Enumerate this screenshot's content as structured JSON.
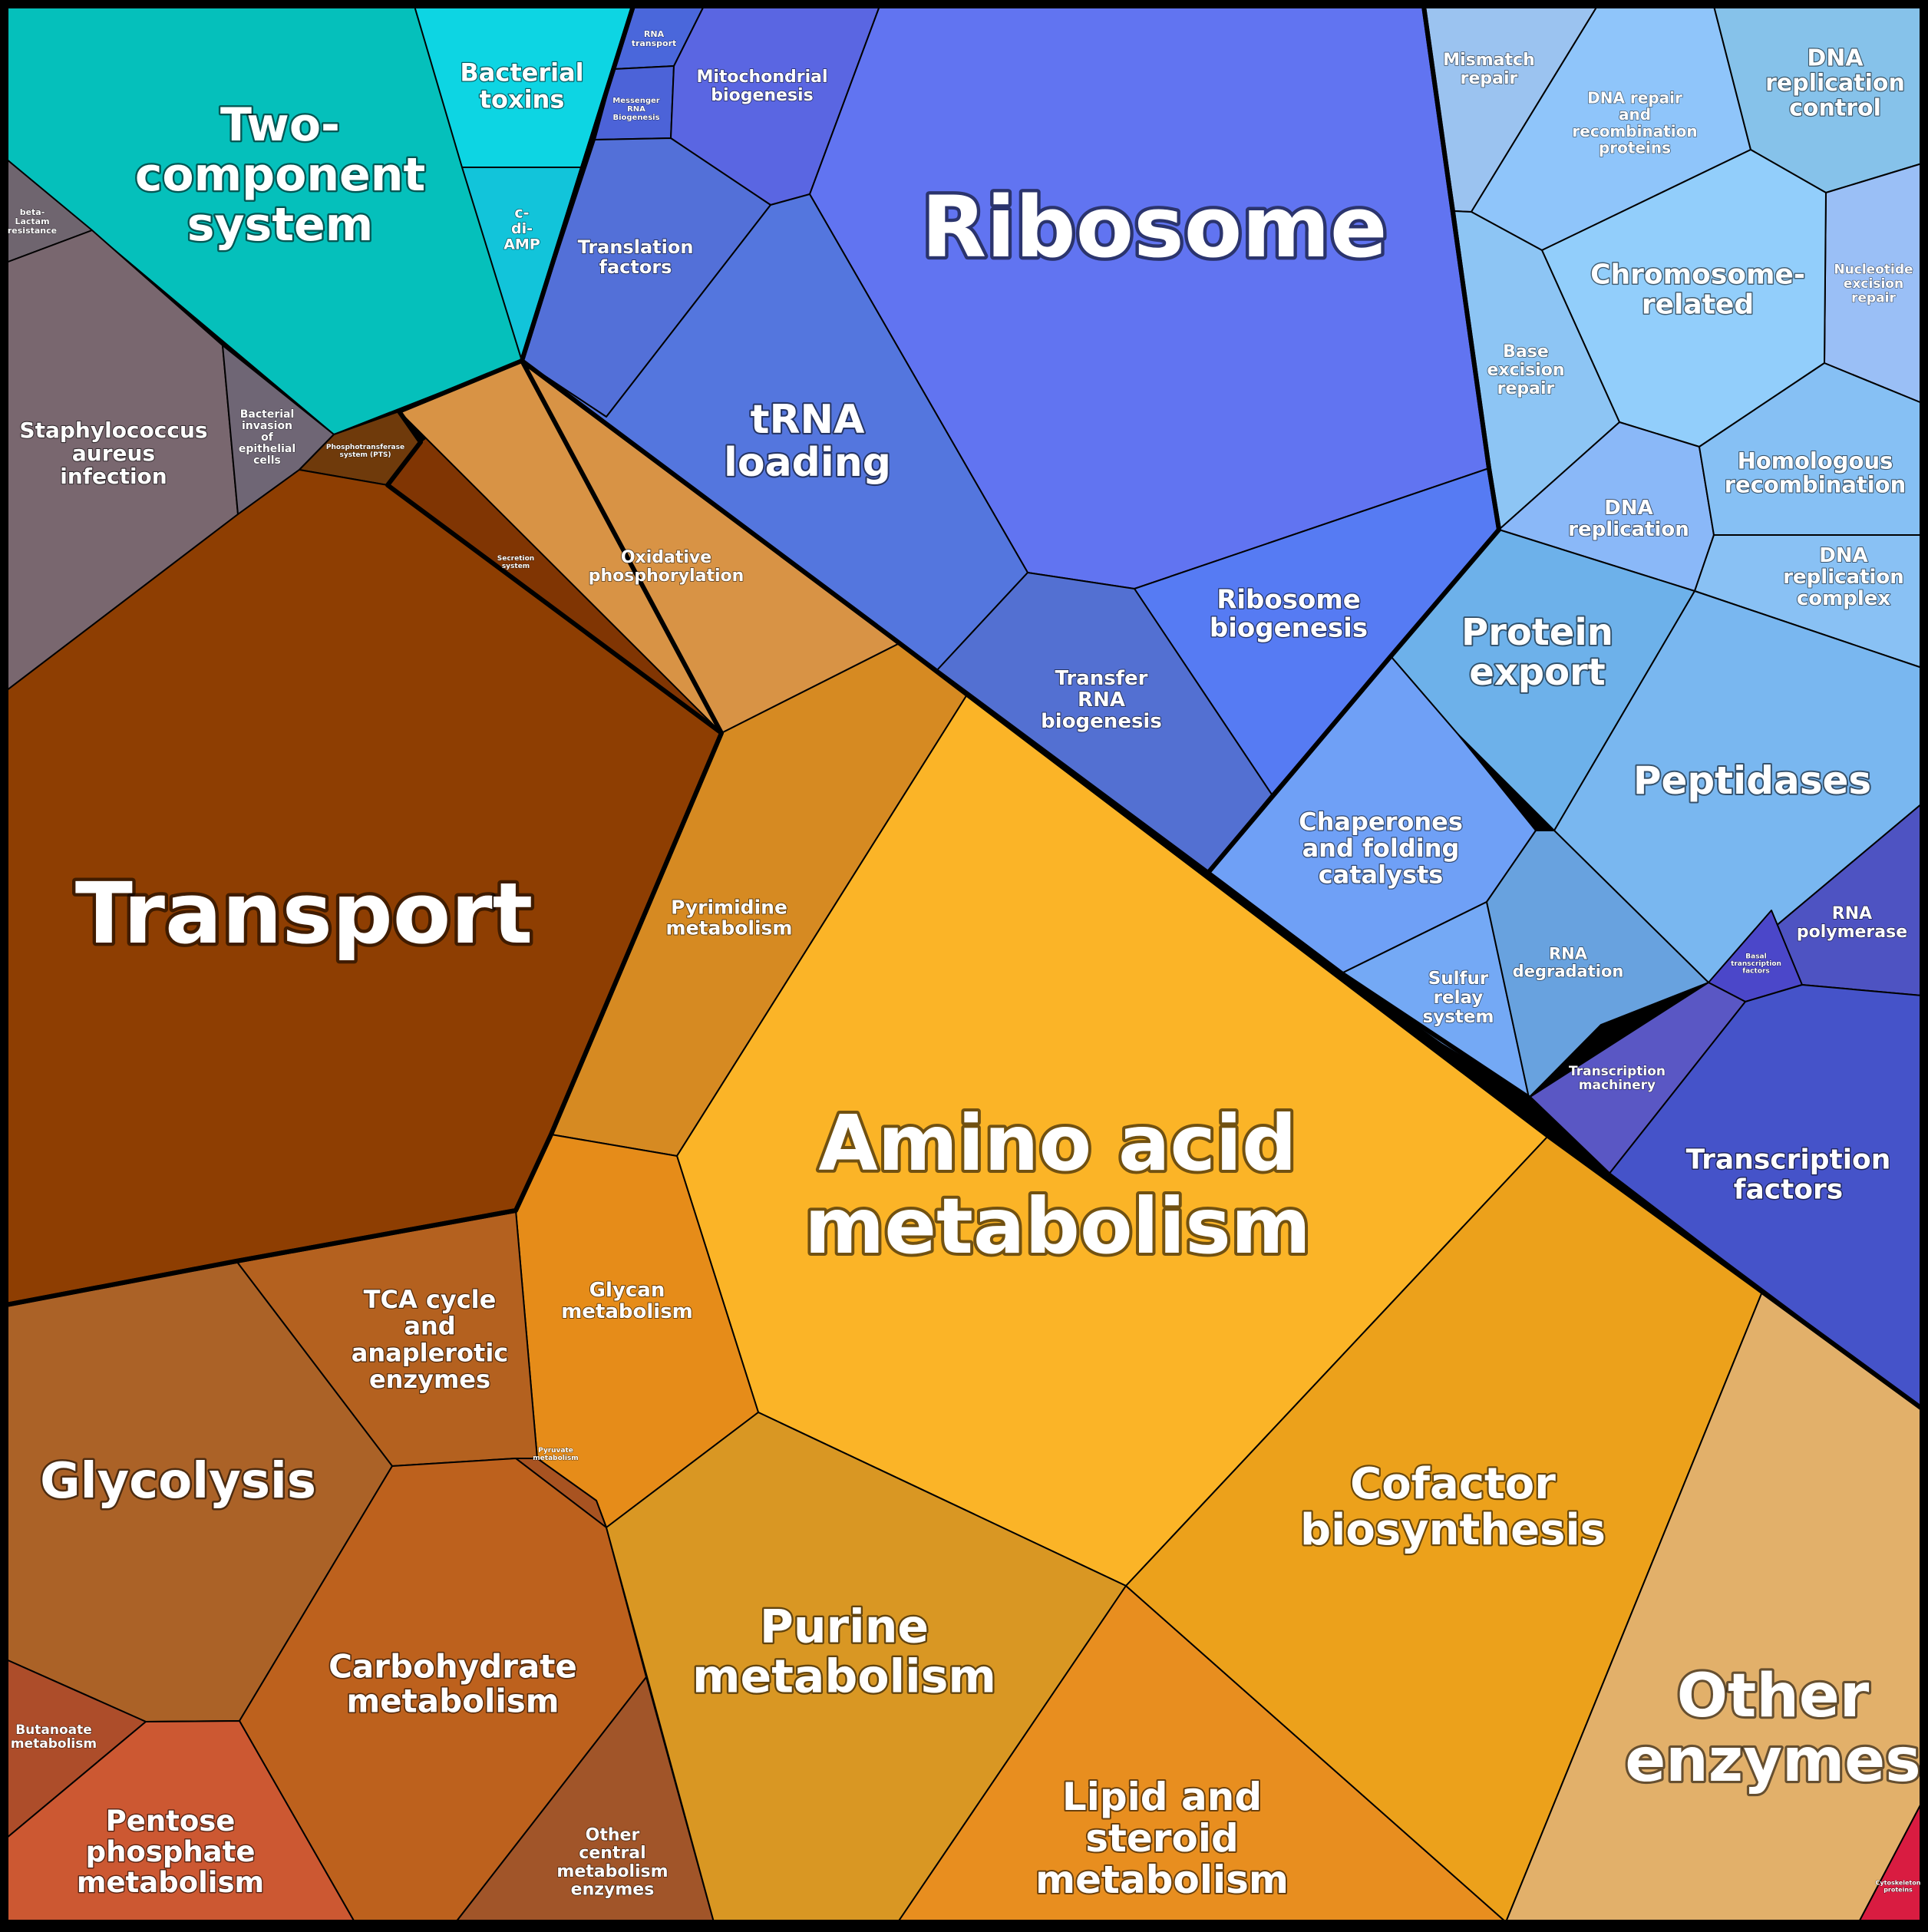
{
  "groups": [
    {
      "id": "environmental",
      "cells": [
        "two-component-system",
        "bacterial-toxins",
        "c-di-amp",
        "beta-lactam-resistance",
        "staphylococcus-aureus-infection",
        "bacterial-invasion",
        "pts",
        "secretion-system",
        "transport"
      ]
    },
    {
      "id": "genetic-information",
      "cells": [
        "rna-transport",
        "messenger-rna-biogenesis",
        "mitochondrial-biogenesis",
        "translation-factors",
        "ribosome",
        "trna-loading",
        "ribosome-biogenesis",
        "transfer-rna-biogenesis"
      ]
    },
    {
      "id": "dna-and-protein",
      "cells": [
        "mismatch-repair",
        "dna-repair-recombination",
        "dna-replication-control",
        "nucleotide-excision-repair",
        "chromosome-related",
        "base-excision-repair",
        "dna-replication",
        "homologous-recombination",
        "dna-replication-complex",
        "protein-export",
        "peptidases",
        "chaperones",
        "sulfur-relay",
        "rna-degradation",
        "rna-polymerase",
        "basal-transcription-factors",
        "transcription-machinery",
        "transcription-factors"
      ]
    },
    {
      "id": "metabolism",
      "cells": [
        "oxidative-phosphorylation",
        "pyrimidine-metabolism",
        "amino-acid-metabolism",
        "glycan-metabolism",
        "tca-cycle",
        "glycolysis",
        "pyruvate-metabolism",
        "carbohydrate-metabolism",
        "butanoate-metabolism",
        "pentose-phosphate",
        "other-central-metabolism",
        "purine-metabolism",
        "lipid-steroid",
        "cofactor-biosynthesis",
        "other-enzymes",
        "cytoskeleton-proteins"
      ]
    }
  ],
  "cells": [
    {
      "id": "two-component-system",
      "label": [
        "Two-",
        "component",
        "system"
      ],
      "color": "#05c0bb"
    },
    {
      "id": "bacterial-toxins",
      "label": [
        "Bacterial",
        "toxins"
      ],
      "color": "#0dd5e3"
    },
    {
      "id": "c-di-amp",
      "label": [
        "c-",
        "di-",
        "AMP"
      ],
      "color": "#12c4da"
    },
    {
      "id": "beta-lactam-resistance",
      "label": [
        "beta-",
        "Lactam",
        "resistance"
      ],
      "color": "#6f656f"
    },
    {
      "id": "staphylococcus-aureus-infection",
      "label": [
        "Staphylococcus",
        "aureus",
        "infection"
      ],
      "color": "#79676f"
    },
    {
      "id": "bacterial-invasion",
      "label": [
        "Bacterial",
        "invasion",
        "of",
        "epithelial",
        "cells"
      ],
      "color": "#6f6675"
    },
    {
      "id": "pts",
      "label": [
        "Phosphotransferase",
        "system (PTS)"
      ],
      "color": "#6f3a0b"
    },
    {
      "id": "secretion-system",
      "label": [
        "Secretion",
        "system"
      ],
      "color": "#803503"
    },
    {
      "id": "transport",
      "label": [
        "Transport"
      ],
      "color": "#8e3e02"
    },
    {
      "id": "rna-transport",
      "label": [
        "RNA",
        "transport"
      ],
      "color": "#4a67db"
    },
    {
      "id": "messenger-rna-biogenesis",
      "label": [
        "Messenger",
        "RNA",
        "Biogenesis"
      ],
      "color": "#4c63d8"
    },
    {
      "id": "mitochondrial-biogenesis",
      "label": [
        "Mitochondrial",
        "biogenesis"
      ],
      "color": "#5a66e2"
    },
    {
      "id": "translation-factors",
      "label": [
        "Translation",
        "factors"
      ],
      "color": "#5370d8"
    },
    {
      "id": "ribosome",
      "label": [
        "Ribosome"
      ],
      "color": "#6174f1"
    },
    {
      "id": "trna-loading",
      "label": [
        "tRNA",
        "loading"
      ],
      "color": "#5476de"
    },
    {
      "id": "ribosome-biogenesis",
      "label": [
        "Ribosome",
        "biogenesis"
      ],
      "color": "#567bf3"
    },
    {
      "id": "transfer-rna-biogenesis",
      "label": [
        "Transfer",
        "RNA",
        "biogenesis"
      ],
      "color": "#5370d2"
    },
    {
      "id": "mismatch-repair",
      "label": [
        "Mismatch",
        "repair"
      ],
      "color": "#9bc3f0"
    },
    {
      "id": "dna-repair-recombination",
      "label": [
        "DNA repair",
        "and",
        "recombination",
        "proteins"
      ],
      "color": "#8fc5fa"
    },
    {
      "id": "dna-replication-control",
      "label": [
        "DNA",
        "replication",
        "control"
      ],
      "color": "#86c2ea"
    },
    {
      "id": "nucleotide-excision-repair",
      "label": [
        "Nucleotide",
        "excision",
        "repair"
      ],
      "color": "#9abff6"
    },
    {
      "id": "chromosome-related",
      "label": [
        "Chromosome-",
        "related"
      ],
      "color": "#92cefb"
    },
    {
      "id": "base-excision-repair",
      "label": [
        "Base",
        "excision",
        "repair"
      ],
      "color": "#8dc5f4"
    },
    {
      "id": "dna-replication",
      "label": [
        "DNA",
        "replication"
      ],
      "color": "#8ab8f8"
    },
    {
      "id": "homologous-recombination",
      "label": [
        "Homologous",
        "recombination"
      ],
      "color": "#86c0f4"
    },
    {
      "id": "dna-replication-complex",
      "label": [
        "DNA",
        "replication",
        "complex"
      ],
      "color": "#89c1f4"
    },
    {
      "id": "protein-export",
      "label": [
        "Protein",
        "export"
      ],
      "color": "#6db1ea"
    },
    {
      "id": "peptidases",
      "label": [
        "Peptidases"
      ],
      "color": "#79b7f0"
    },
    {
      "id": "chaperones",
      "label": [
        "Chaperones",
        "and folding",
        "catalysts"
      ],
      "color": "#6fa0f6"
    },
    {
      "id": "sulfur-relay",
      "label": [
        "Sulfur",
        "relay",
        "system"
      ],
      "color": "#74a9f5"
    },
    {
      "id": "rna-degradation",
      "label": [
        "RNA",
        "degradation"
      ],
      "color": "#68a2df"
    },
    {
      "id": "rna-polymerase",
      "label": [
        "RNA",
        "polymerase"
      ],
      "color": "#4e53c2"
    },
    {
      "id": "basal-transcription-factors",
      "label": [
        "Basal",
        "transcription",
        "factors"
      ],
      "color": "#4b47c9"
    },
    {
      "id": "transcription-machinery",
      "label": [
        "Transcription",
        "machinery"
      ],
      "color": "#5a57c4"
    },
    {
      "id": "transcription-factors",
      "label": [
        "Transcription",
        "factors"
      ],
      "color": "#4553c9"
    },
    {
      "id": "oxidative-phosphorylation",
      "label": [
        "Oxidative",
        "phosphorylation"
      ],
      "color": "#d89345"
    },
    {
      "id": "pyrimidine-metabolism",
      "label": [
        "Pyrimidine",
        "metabolism"
      ],
      "color": "#d68a22"
    },
    {
      "id": "amino-acid-metabolism",
      "label": [
        "Amino acid",
        "metabolism"
      ],
      "color": "#fbb427"
    },
    {
      "id": "glycan-metabolism",
      "label": [
        "Glycan",
        "metabolism"
      ],
      "color": "#e68c19"
    },
    {
      "id": "tca-cycle",
      "label": [
        "TCA cycle",
        "and",
        "anaplerotic",
        "enzymes"
      ],
      "color": "#b4611f"
    },
    {
      "id": "glycolysis",
      "label": [
        "Glycolysis"
      ],
      "color": "#ab6227"
    },
    {
      "id": "pyruvate-metabolism",
      "label": [
        "Pyruvate",
        "metabolism"
      ],
      "color": "#a85321"
    },
    {
      "id": "carbohydrate-metabolism",
      "label": [
        "Carbohydrate",
        "metabolism"
      ],
      "color": "#bd611d"
    },
    {
      "id": "butanoate-metabolism",
      "label": [
        "Butanoate",
        "metabolism"
      ],
      "color": "#ad4d2a"
    },
    {
      "id": "pentose-phosphate",
      "label": [
        "Pentose",
        "phosphate",
        "metabolism"
      ],
      "color": "#cc5832"
    },
    {
      "id": "other-central-metabolism",
      "label": [
        "Other",
        "central",
        "metabolism",
        "enzymes"
      ],
      "color": "#a15529"
    },
    {
      "id": "purine-metabolism",
      "label": [
        "Purine",
        "metabolism"
      ],
      "color": "#d99723"
    },
    {
      "id": "lipid-steroid",
      "label": [
        "Lipid and",
        "steroid",
        "metabolism"
      ],
      "color": "#e88e1f"
    },
    {
      "id": "cofactor-biosynthesis",
      "label": [
        "Cofactor",
        "biosynthesis"
      ],
      "color": "#eca11b"
    },
    {
      "id": "other-enzymes",
      "label": [
        "Other",
        "enzymes"
      ],
      "color": "#e2b06a"
    },
    {
      "id": "cytoskeleton-proteins",
      "label": [
        "Cytoskeleton",
        "proteins"
      ],
      "color": "#d91c41"
    }
  ]
}
